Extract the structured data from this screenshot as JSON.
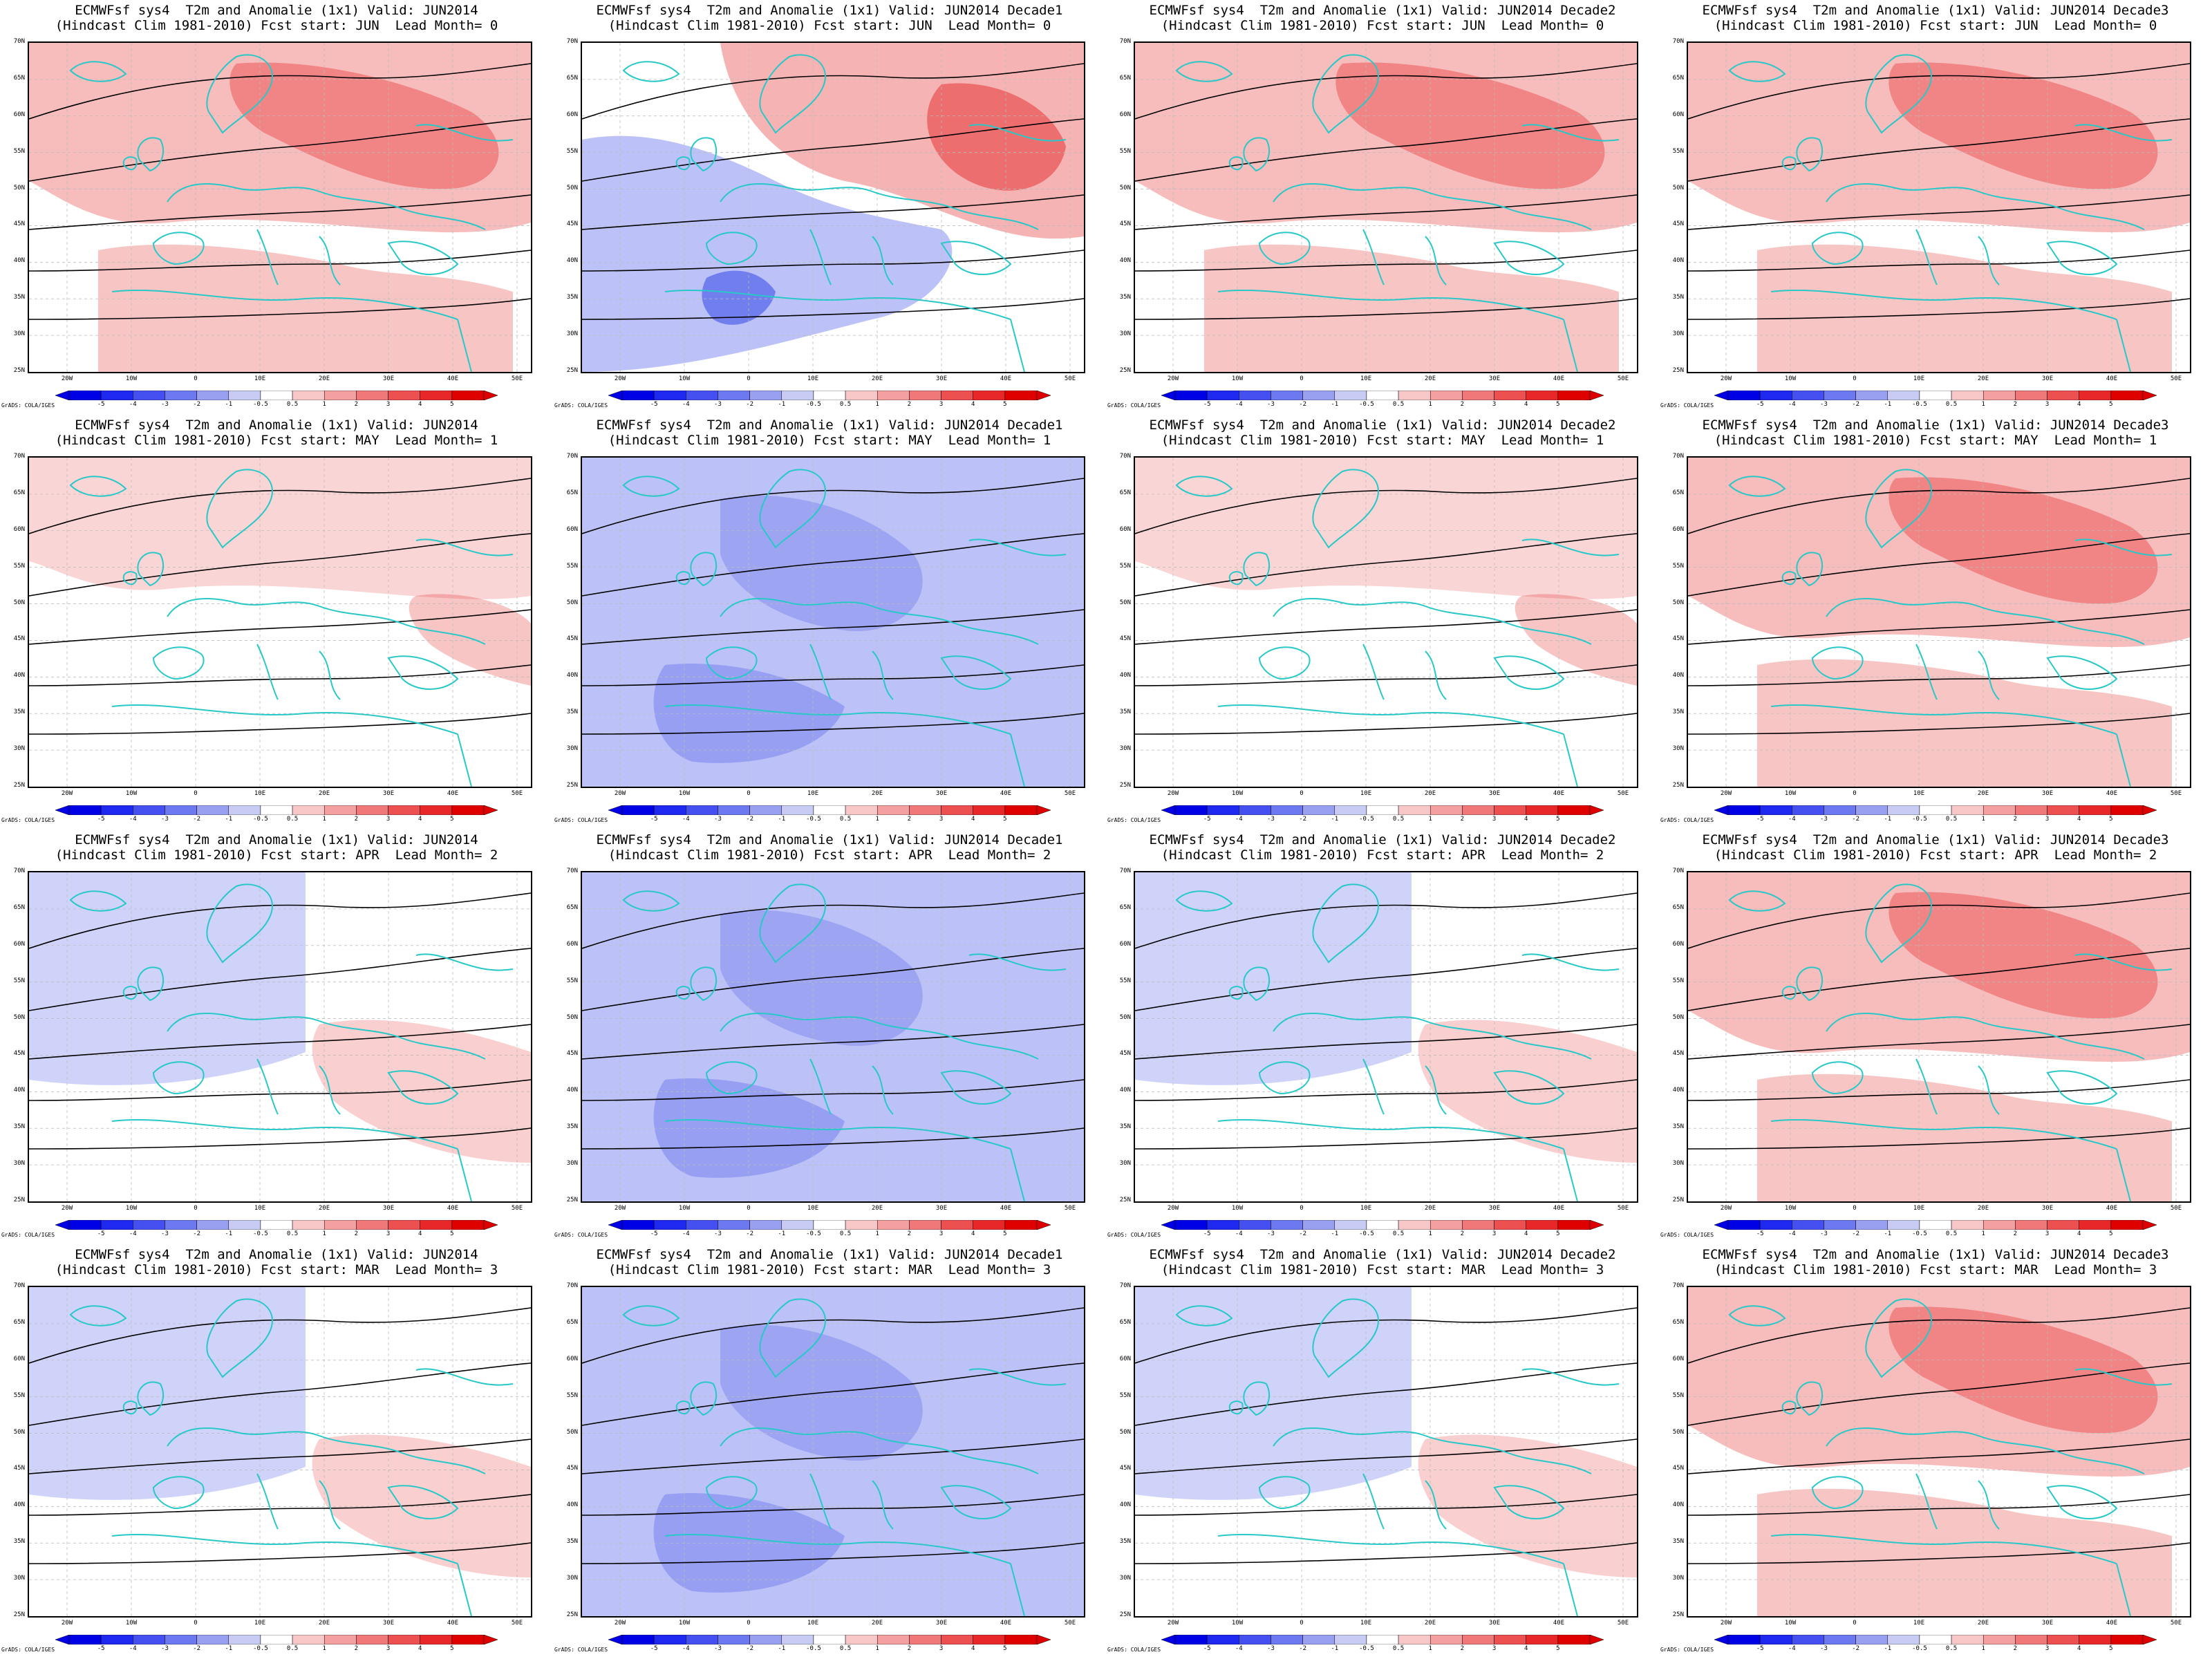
{
  "panels": [
    {
      "line1": "ECMWFsf sys4  T2m and Anomalie (1x1) Valid: JUN2014",
      "line2": "(Hindcast Clim 1981-2010) Fcst start: JUN  Lead Month= 0",
      "anomaly_level": 1.2,
      "pattern": "warm"
    },
    {
      "line1": "ECMWFsf sys4  T2m and Anomalie (1x1) Valid: JUN2014 Decade1",
      "line2": "(Hindcast Clim 1981-2010) Fcst start: JUN  Lead Month= 0",
      "anomaly_level": 0.5,
      "pattern": "dipole"
    },
    {
      "line1": "ECMWFsf sys4  T2m and Anomalie (1x1) Valid: JUN2014 Decade2",
      "line2": "(Hindcast Clim 1981-2010) Fcst start: JUN  Lead Month= 0",
      "anomaly_level": 1.6,
      "pattern": "warm"
    },
    {
      "line1": "ECMWFsf sys4  T2m and Anomalie (1x1) Valid: JUN2014 Decade3",
      "line2": "(Hindcast Clim 1981-2010) Fcst start: JUN  Lead Month= 0",
      "anomaly_level": 1.4,
      "pattern": "warm"
    },
    {
      "line1": "ECMWFsf sys4  T2m and Anomalie (1x1) Valid: JUN2014",
      "line2": "(Hindcast Clim 1981-2010) Fcst start: MAY  Lead Month= 1",
      "anomaly_level": 0.3,
      "pattern": "weakwarm"
    },
    {
      "line1": "ECMWFsf sys4  T2m and Anomalie (1x1) Valid: JUN2014 Decade1",
      "line2": "(Hindcast Clim 1981-2010) Fcst start: MAY  Lead Month= 1",
      "anomaly_level": -0.9,
      "pattern": "cold"
    },
    {
      "line1": "ECMWFsf sys4  T2m and Anomalie (1x1) Valid: JUN2014 Decade2",
      "line2": "(Hindcast Clim 1981-2010) Fcst start: MAY  Lead Month= 1",
      "anomaly_level": 0.3,
      "pattern": "weakwarm"
    },
    {
      "line1": "ECMWFsf sys4  T2m and Anomalie (1x1) Valid: JUN2014 Decade3",
      "line2": "(Hindcast Clim 1981-2010) Fcst start: MAY  Lead Month= 1",
      "anomaly_level": 1.0,
      "pattern": "warm"
    },
    {
      "line1": "ECMWFsf sys4  T2m and Anomalie (1x1) Valid: JUN2014",
      "line2": "(Hindcast Clim 1981-2010) Fcst start: APR  Lead Month= 2",
      "anomaly_level": -0.2,
      "pattern": "mixed"
    },
    {
      "line1": "ECMWFsf sys4  T2m and Anomalie (1x1) Valid: JUN2014 Decade1",
      "line2": "(Hindcast Clim 1981-2010) Fcst start: APR  Lead Month= 2",
      "anomaly_level": -1.0,
      "pattern": "cold"
    },
    {
      "line1": "ECMWFsf sys4  T2m and Anomalie (1x1) Valid: JUN2014 Decade2",
      "line2": "(Hindcast Clim 1981-2010) Fcst start: APR  Lead Month= 2",
      "anomaly_level": -0.2,
      "pattern": "mixed"
    },
    {
      "line1": "ECMWFsf sys4  T2m and Anomalie (1x1) Valid: JUN2014 Decade3",
      "line2": "(Hindcast Clim 1981-2010) Fcst start: APR  Lead Month= 2",
      "anomaly_level": 0.8,
      "pattern": "warm"
    },
    {
      "line1": "ECMWFsf sys4  T2m and Anomalie (1x1) Valid: JUN2014",
      "line2": "(Hindcast Clim 1981-2010) Fcst start: MAR  Lead Month= 3",
      "anomaly_level": -0.3,
      "pattern": "mixed"
    },
    {
      "line1": "ECMWFsf sys4  T2m and Anomalie (1x1) Valid: JUN2014 Decade1",
      "line2": "(Hindcast Clim 1981-2010) Fcst start: MAR  Lead Month= 3",
      "anomaly_level": -1.3,
      "pattern": "cold"
    },
    {
      "line1": "ECMWFsf sys4  T2m and Anomalie (1x1) Valid: JUN2014 Decade2",
      "line2": "(Hindcast Clim 1981-2010) Fcst start: MAR  Lead Month= 3",
      "anomaly_level": -0.5,
      "pattern": "mixed"
    },
    {
      "line1": "ECMWFsf sys4  T2m and Anomalie (1x1) Valid: JUN2014 Decade3",
      "line2": "(Hindcast Clim 1981-2010) Fcst start: MAR  Lead Month= 3",
      "anomaly_level": 0.8,
      "pattern": "warm"
    }
  ],
  "lat_labels": [
    "70N",
    "65N",
    "60N",
    "55N",
    "50N",
    "45N",
    "40N",
    "35N",
    "30N",
    "25N"
  ],
  "lon_labels": [
    "20W",
    "10W",
    "0",
    "10E",
    "20E",
    "30E",
    "40E",
    "50E"
  ],
  "colorbar": {
    "labels": [
      "-5",
      "-4",
      "-3",
      "-2",
      "-1",
      "-0.5",
      "0.5",
      "1",
      "2",
      "3",
      "4",
      "5"
    ],
    "colors": [
      "#0000e6",
      "#1e28f0",
      "#4650f0",
      "#6e78f0",
      "#9aa0f0",
      "#c8ccf5",
      "#ffffff",
      "#f8c8c8",
      "#f4a0a0",
      "#f07878",
      "#ec5050",
      "#e82828",
      "#e00000"
    ]
  },
  "credit": "GrADS: COLA/IGES",
  "colors": {
    "coast": "#28c8c8",
    "contour": "#000000",
    "warm": "#e84040",
    "cold": "#4050e8"
  }
}
